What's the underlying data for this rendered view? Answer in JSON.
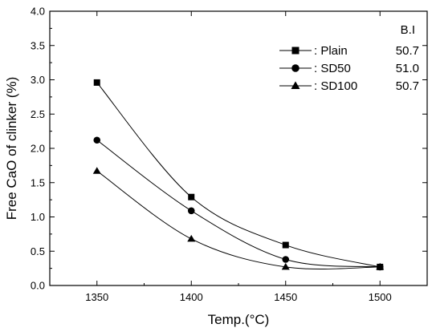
{
  "chart_data": {
    "type": "line",
    "xlabel": "Temp.(°C)",
    "ylabel": "Free CaO of clinker (%)",
    "x": [
      1350,
      1400,
      1450,
      1500
    ],
    "xlim": [
      1325,
      1525
    ],
    "ylim": [
      0.0,
      4.0
    ],
    "x_ticks": [
      1350,
      1400,
      1450,
      1500
    ],
    "y_ticks": [
      0.0,
      0.5,
      1.0,
      1.5,
      2.0,
      2.5,
      3.0,
      3.5,
      4.0
    ],
    "grid": false,
    "legend_placement": "top-right",
    "legend_header": "B.I",
    "series": [
      {
        "name": ": Plain",
        "bi": "50.7",
        "marker": "square",
        "values": [
          2.96,
          1.29,
          0.59,
          0.27
        ]
      },
      {
        "name": ": SD50",
        "bi": "51.0",
        "marker": "circle",
        "values": [
          2.12,
          1.09,
          0.38,
          0.27
        ]
      },
      {
        "name": ": SD100",
        "bi": "50.7",
        "marker": "triangle",
        "values": [
          1.67,
          0.68,
          0.27,
          0.27
        ]
      }
    ]
  }
}
